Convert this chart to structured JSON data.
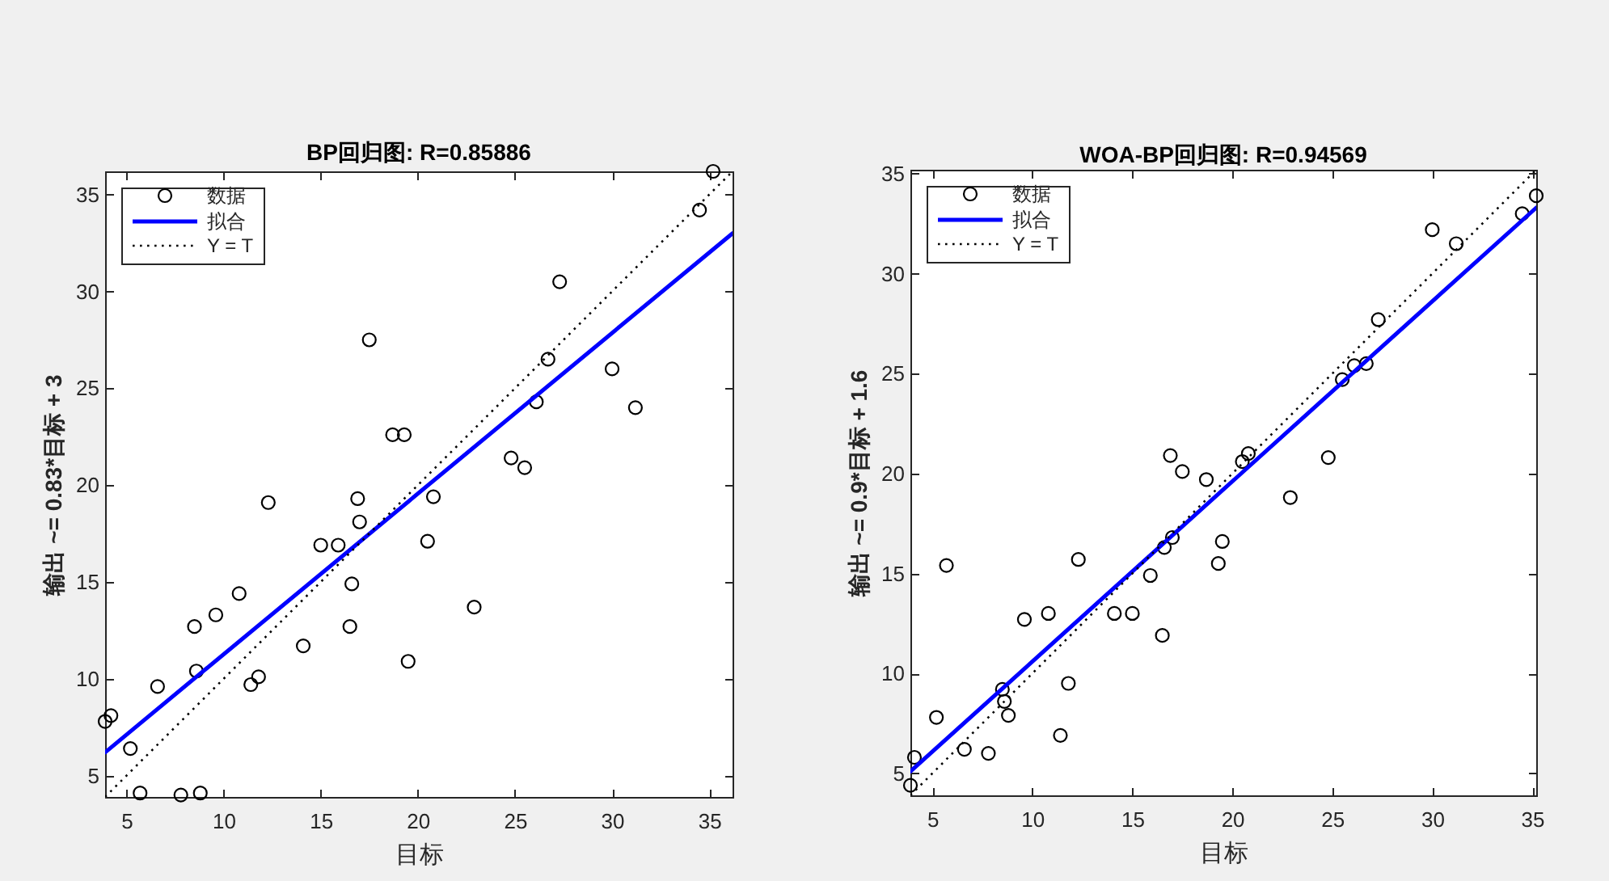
{
  "chart_data": [
    {
      "type": "scatter",
      "title": "BP回归图: R=0.85886",
      "xlabel": "目标",
      "ylabel": "输出 ~= 0.83*目标 + 3",
      "xlim": [
        3.9,
        36.2
      ],
      "ylim": [
        3.9,
        36.2
      ],
      "xticks": [
        5,
        10,
        15,
        20,
        25,
        30,
        35
      ],
      "yticks": [
        5,
        10,
        15,
        20,
        25,
        30,
        35
      ],
      "legend": "top left",
      "series": [
        {
          "name": "数据",
          "type": "scatter",
          "marker": "circle",
          "color": "#000000",
          "x": [
            35.2,
            34.5,
            27.3,
            17.5,
            26.7,
            30.0,
            26.1,
            31.2,
            18.7,
            19.3,
            24.8,
            25.5,
            12.3,
            16.9,
            20.8,
            17.0,
            15.0,
            15.9,
            20.5,
            16.6,
            10.8,
            9.6,
            8.5,
            16.5,
            22.9,
            14.1,
            8.6,
            11.8,
            11.4,
            19.5,
            6.6,
            4.2,
            3.9,
            5.2,
            5.7,
            7.8,
            8.8
          ],
          "values": [
            36.2,
            34.2,
            30.5,
            27.5,
            26.5,
            26.0,
            24.3,
            24.0,
            22.6,
            22.6,
            21.4,
            20.9,
            19.1,
            19.3,
            19.4,
            18.1,
            16.9,
            16.9,
            17.1,
            14.9,
            14.4,
            13.3,
            12.7,
            12.7,
            13.7,
            11.7,
            10.4,
            10.1,
            9.7,
            10.9,
            9.6,
            8.1,
            7.8,
            6.4,
            4.1,
            4.0,
            4.1
          ]
        },
        {
          "name": "拟合",
          "type": "line",
          "line_style": "solid",
          "color": "#0000ff",
          "x": [
            3.9,
            36.2
          ],
          "values": [
            6.2,
            33.0
          ]
        },
        {
          "name": "Y = T",
          "type": "line",
          "line_style": "dotted",
          "color": "#000000",
          "x": [
            3.9,
            36.2
          ],
          "values": [
            3.9,
            36.2
          ]
        }
      ]
    },
    {
      "type": "scatter",
      "title": "WOA-BP回归图: R=0.94569",
      "xlabel": "目标",
      "ylabel": "输出 ~= 0.9*目标 + 1.6",
      "xlim": [
        3.9,
        35.2
      ],
      "ylim": [
        3.9,
        35.2
      ],
      "xticks": [
        5,
        10,
        15,
        20,
        25,
        30,
        35
      ],
      "yticks": [
        5,
        10,
        15,
        20,
        25,
        30,
        35
      ],
      "legend": "top left",
      "series": [
        {
          "name": "数据",
          "type": "scatter",
          "marker": "circle",
          "color": "#000000",
          "x": [
            35.2,
            34.5,
            30.0,
            31.2,
            27.3,
            26.1,
            26.7,
            25.5,
            16.9,
            20.8,
            20.5,
            17.5,
            24.8,
            18.7,
            22.9,
            17.0,
            16.6,
            19.5,
            19.3,
            15.9,
            12.3,
            5.7,
            10.8,
            14.1,
            15.0,
            9.6,
            16.5,
            11.8,
            8.5,
            8.6,
            8.8,
            5.2,
            11.4,
            6.6,
            7.8,
            4.1,
            3.9
          ],
          "values": [
            33.9,
            33.0,
            32.2,
            31.5,
            27.7,
            25.4,
            25.5,
            24.7,
            20.9,
            21.0,
            20.6,
            20.1,
            20.8,
            19.7,
            18.8,
            16.8,
            16.3,
            16.6,
            15.5,
            14.9,
            15.7,
            15.4,
            13.0,
            13.0,
            13.0,
            12.7,
            11.9,
            9.5,
            9.2,
            8.6,
            7.9,
            7.8,
            6.9,
            6.2,
            6.0,
            5.8,
            4.4
          ]
        },
        {
          "name": "拟合",
          "type": "line",
          "line_style": "solid",
          "color": "#0000ff",
          "x": [
            3.9,
            35.2
          ],
          "values": [
            5.1,
            33.3
          ]
        },
        {
          "name": "Y = T",
          "type": "line",
          "line_style": "dotted",
          "color": "#000000",
          "x": [
            3.9,
            35.2
          ],
          "values": [
            3.9,
            35.2
          ]
        }
      ]
    }
  ]
}
